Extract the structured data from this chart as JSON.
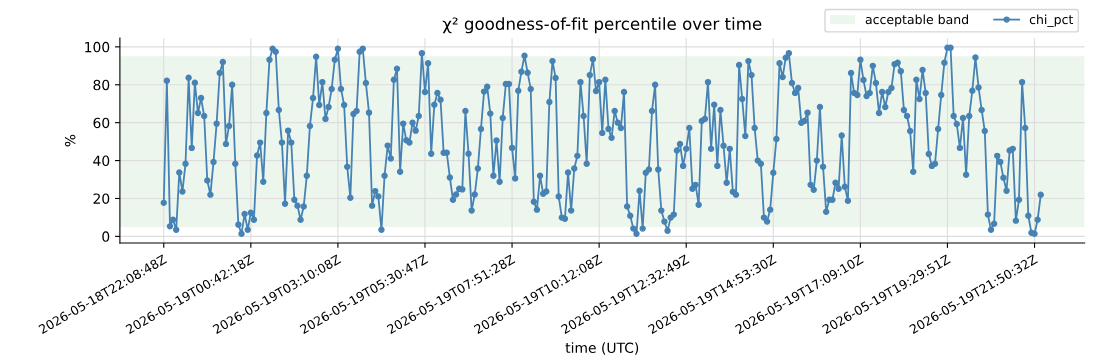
{
  "chart_data": {
    "type": "line",
    "title": "χ² goodness-of-fit percentile over time",
    "xlabel": "time (UTC)",
    "ylabel": "%",
    "categories": [
      "2026-05-18T22:08:48Z",
      null,
      null,
      null,
      null,
      null,
      null,
      null,
      null,
      null,
      null,
      null,
      null,
      null,
      null,
      null,
      null,
      null,
      null,
      null,
      null,
      null,
      null,
      null,
      null,
      null,
      null,
      null,
      "2026-05-19T00:42:18Z",
      null,
      null,
      null,
      null,
      null,
      null,
      null,
      null,
      null,
      null,
      null,
      null,
      null,
      null,
      null,
      null,
      null,
      null,
      null,
      null,
      null,
      null,
      null,
      null,
      null,
      null,
      null,
      "2026-05-19T03:10:08Z",
      null,
      null,
      null,
      null,
      null,
      null,
      null,
      null,
      null,
      null,
      null,
      null,
      null,
      null,
      null,
      null,
      null,
      null,
      null,
      null,
      null,
      null,
      null,
      null,
      null,
      null,
      null,
      "2026-05-19T05:30:47Z",
      null,
      null,
      null,
      null,
      null,
      null,
      null,
      null,
      null,
      null,
      null,
      null,
      null,
      null,
      null,
      null,
      null,
      null,
      null,
      null,
      null,
      null,
      null,
      null,
      null,
      null,
      null,
      "2026-05-19T07:51:28Z",
      null,
      null,
      null,
      null,
      null,
      null,
      null,
      null,
      null,
      null,
      null,
      null,
      null,
      null,
      null,
      null,
      null,
      null,
      null,
      null,
      null,
      null,
      null,
      null,
      null,
      null,
      null,
      "2026-05-19T10:12:08Z",
      null,
      null,
      null,
      null,
      null,
      null,
      null,
      null,
      null,
      null,
      null,
      null,
      null,
      null,
      null,
      null,
      null,
      null,
      null,
      null,
      null,
      null,
      null,
      null,
      null,
      null,
      null,
      "2026-05-19T12:32:49Z",
      null,
      null,
      null,
      null,
      null,
      null,
      null,
      null,
      null,
      null,
      null,
      null,
      null,
      null,
      null,
      null,
      null,
      null,
      null,
      null,
      null,
      null,
      null,
      null,
      null,
      null,
      null,
      "2026-05-19T14:53:30Z",
      null,
      null,
      null,
      null,
      null,
      null,
      null,
      null,
      null,
      null,
      null,
      null,
      null,
      null,
      null,
      null,
      null,
      null,
      null,
      null,
      null,
      null,
      null,
      null,
      null,
      null,
      null,
      "2026-05-19T17:09:10Z",
      null,
      null,
      null,
      null,
      null,
      null,
      null,
      null,
      null,
      null,
      null,
      null,
      null,
      null,
      null,
      null,
      null,
      null,
      null,
      null,
      null,
      null,
      null,
      null,
      null,
      null,
      null,
      "2026-05-19T19:29:51Z",
      null,
      null,
      null,
      null,
      null,
      null,
      null,
      null,
      null,
      null,
      null,
      null,
      null,
      null,
      null,
      null,
      null,
      null,
      null,
      null,
      null,
      null,
      null,
      null,
      null,
      null,
      null,
      "2026-05-19T21:50:32Z",
      null,
      null
    ],
    "series": [
      {
        "name": "chi_pct",
        "color": "#4682b4",
        "values": [
          17.7,
          82.1,
          5.3,
          8.8,
          3.5,
          33.7,
          23.7,
          38.3,
          83.7,
          46.7,
          81.1,
          65.1,
          73,
          63.5,
          29.5,
          22,
          39.3,
          59.5,
          86.2,
          92,
          48.8,
          58.3,
          80,
          38.3,
          6.2,
          1.4,
          11.8,
          3.5,
          12.5,
          8.8,
          42.7,
          49.5,
          28.8,
          65.1,
          93.2,
          99,
          97.4,
          66.7,
          49.5,
          17.2,
          55.8,
          49.5,
          19.3,
          16.2,
          8.8,
          15.8,
          32,
          58.3,
          73,
          94.8,
          69.3,
          81.4,
          62,
          68.3,
          77.8,
          93.2,
          99,
          77.8,
          69.3,
          36.7,
          20.4,
          64.6,
          66.2,
          97.4,
          99,
          80.9,
          65.3,
          16.2,
          23.9,
          21.1,
          3.5,
          32,
          47.9,
          41.1,
          82.7,
          88.5,
          34.1,
          59.5,
          50.7,
          49.5,
          60,
          55.8,
          63.5,
          96.7,
          76.2,
          91.4,
          43.6,
          69.5,
          75.7,
          72.1,
          44.1,
          44.1,
          31.1,
          19.3,
          22.1,
          25.1,
          24.8,
          66.2,
          43.6,
          13.6,
          22.1,
          35.8,
          56.7,
          76.4,
          79,
          64.8,
          32,
          50.6,
          28.8,
          62.5,
          80.4,
          80.4,
          46.7,
          30.6,
          76.9,
          86.9,
          95.3,
          86.4,
          77.8,
          18.3,
          14.1,
          32,
          22.5,
          23.7,
          70.9,
          92.5,
          83.6,
          21.1,
          9.9,
          9.3,
          33.7,
          13.6,
          35.8,
          42.5,
          81.4,
          63.5,
          38.3,
          85.1,
          93.5,
          76.7,
          81.4,
          54.6,
          82.7,
          56.7,
          52,
          66.2,
          60,
          57.2,
          76.2,
          15.8,
          10.9,
          4.1,
          1.4,
          24.1,
          4.1,
          33.6,
          35.3,
          66.2,
          80,
          35.3,
          13.6,
          7.8,
          3,
          9.9,
          11.5,
          45.3,
          48.8,
          37.2,
          46.2,
          57.2,
          25.1,
          27.2,
          16.7,
          60.9,
          62,
          81.4,
          46.2,
          69.5,
          37.2,
          66.7,
          47.8,
          28.3,
          46.2,
          23.5,
          22,
          90.4,
          72.5,
          53,
          92.5,
          85.1,
          57.2,
          40,
          38.3,
          9.9,
          7.8,
          14.1,
          33.6,
          51.4,
          91.4,
          84.1,
          94.3,
          96.7,
          80.9,
          75.7,
          78.3,
          59.9,
          60.9,
          65.3,
          27.2,
          24.6,
          40,
          68.3,
          36.7,
          13,
          19.3,
          19.3,
          28.3,
          25.1,
          53.2,
          26.2,
          18.8,
          86.2,
          75.7,
          74.6,
          93.2,
          82.5,
          74.1,
          75.7,
          90,
          80.9,
          65.1,
          76.2,
          68.3,
          76.2,
          78.3,
          90.9,
          91.6,
          87.2,
          66.7,
          63.5,
          55.6,
          34.1,
          82.7,
          72.5,
          87.8,
          75.7,
          43.5,
          37.2,
          38.3,
          56.7,
          74.6,
          91.6,
          99.6,
          99.6,
          63.5,
          59.3,
          46.7,
          62.5,
          32.5,
          63.5,
          76.9,
          94.4,
          78.6,
          66.7,
          55.6,
          11.5,
          3.5,
          6.7,
          42.5,
          39.3,
          30.9,
          24.1,
          45.3,
          46.2,
          8.3,
          19.3,
          81.4,
          57.2,
          10.9,
          1.9,
          1.4,
          8.8,
          22
        ]
      }
    ],
    "bands": [
      {
        "axis": "y",
        "from": 5,
        "to": 95,
        "label": "acceptable band",
        "color": "#2ca02c"
      }
    ],
    "ylim": [
      -3.5,
      104.6
    ],
    "yticks": [
      0,
      20,
      40,
      60,
      80,
      100
    ],
    "grid": true,
    "legend": "top right",
    "marker": "circle",
    "line_style": "solid"
  }
}
